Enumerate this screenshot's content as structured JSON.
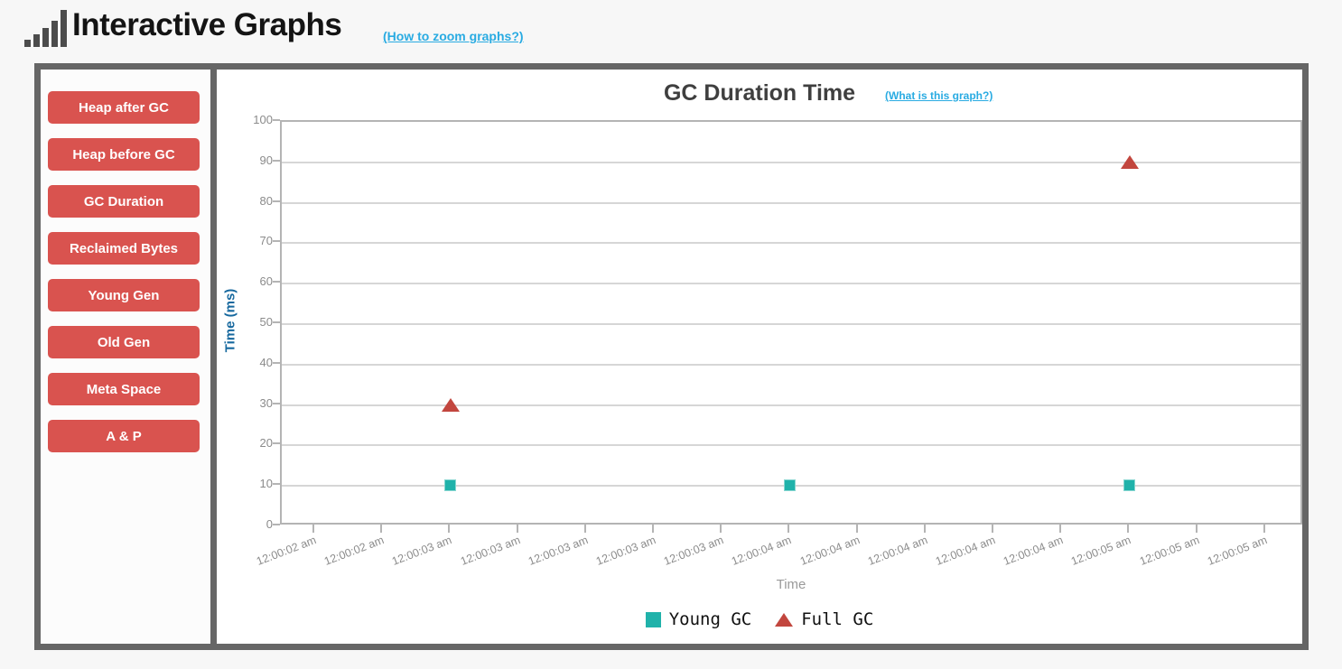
{
  "header": {
    "title": "Interactive Graphs",
    "zoom_help_link": "(How to zoom graphs?)"
  },
  "sidebar": {
    "buttons": [
      {
        "label": "Heap after GC"
      },
      {
        "label": "Heap before GC"
      },
      {
        "label": "GC Duration"
      },
      {
        "label": "Reclaimed Bytes"
      },
      {
        "label": "Young Gen"
      },
      {
        "label": "Old Gen"
      },
      {
        "label": "Meta Space"
      },
      {
        "label": "A & P"
      }
    ]
  },
  "chart": {
    "title": "GC Duration Time",
    "info_link": "(What is this graph?)"
  },
  "chart_data": {
    "type": "scatter",
    "title": "GC Duration Time",
    "xlabel": "Time",
    "ylabel": "Time (ms)",
    "ylim": [
      0,
      100
    ],
    "y_interval": 10,
    "y_ticks": [
      0,
      10,
      20,
      30,
      40,
      50,
      60,
      70,
      80,
      90,
      100
    ],
    "grid": true,
    "legend_position": "bottom",
    "x_tick_labels": [
      "12:00:02 am",
      "12:00:02 am",
      "12:00:03 am",
      "12:00:03 am",
      "12:00:03 am",
      "12:00:03 am",
      "12:00:03 am",
      "12:00:04 am",
      "12:00:04 am",
      "12:00:04 am",
      "12:00:04 am",
      "12:00:04 am",
      "12:00:05 am",
      "12:00:05 am",
      "12:00:05 am"
    ],
    "series": [
      {
        "name": "Young GC",
        "marker": "square",
        "color": "#20b2aa",
        "points": [
          {
            "x_label": "12:00:03 am",
            "x_index": 2,
            "y": 10
          },
          {
            "x_label": "12:00:04 am",
            "x_index": 7,
            "y": 10
          },
          {
            "x_label": "12:00:05 am",
            "x_index": 12,
            "y": 10
          }
        ]
      },
      {
        "name": "Full GC",
        "marker": "triangle",
        "color": "#c2463e",
        "points": [
          {
            "x_label": "12:00:03 am",
            "x_index": 2,
            "y": 30
          },
          {
            "x_label": "12:00:05 am",
            "x_index": 12,
            "y": 90
          }
        ]
      }
    ]
  },
  "colors": {
    "button_red": "#d9534f",
    "link_blue": "#29abe2",
    "axis_title_blue": "#16689e",
    "container_border": "#666666"
  }
}
